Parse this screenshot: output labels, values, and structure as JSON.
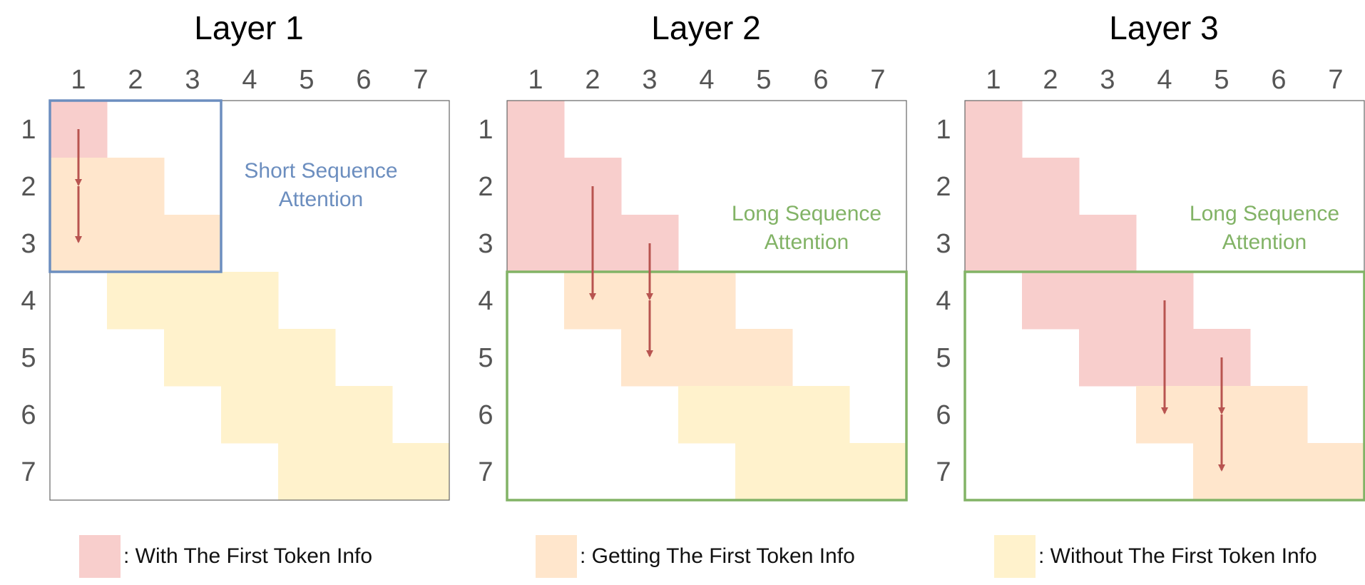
{
  "colors": {
    "with": "#f8cecc",
    "getting": "#ffe6cc",
    "without": "#fff2cc",
    "arrow": "#b85450",
    "short_box": "#6c8ebf",
    "long_box": "#82b366",
    "grid_border": "#666666",
    "label": "#555555"
  },
  "tokens": [
    "1",
    "2",
    "3",
    "4",
    "5",
    "6",
    "7"
  ],
  "panels": [
    {
      "title": "Layer 1",
      "cells": [
        {
          "row": 1,
          "col": 1,
          "state": "with"
        },
        {
          "row": 2,
          "col": 1,
          "state": "getting"
        },
        {
          "row": 2,
          "col": 2,
          "state": "getting"
        },
        {
          "row": 3,
          "col": 1,
          "state": "getting"
        },
        {
          "row": 3,
          "col": 2,
          "state": "getting"
        },
        {
          "row": 3,
          "col": 3,
          "state": "getting"
        },
        {
          "row": 4,
          "col": 2,
          "state": "without"
        },
        {
          "row": 4,
          "col": 3,
          "state": "without"
        },
        {
          "row": 4,
          "col": 4,
          "state": "without"
        },
        {
          "row": 5,
          "col": 3,
          "state": "without"
        },
        {
          "row": 5,
          "col": 4,
          "state": "without"
        },
        {
          "row": 5,
          "col": 5,
          "state": "without"
        },
        {
          "row": 6,
          "col": 4,
          "state": "without"
        },
        {
          "row": 6,
          "col": 5,
          "state": "without"
        },
        {
          "row": 6,
          "col": 6,
          "state": "without"
        },
        {
          "row": 7,
          "col": 5,
          "state": "without"
        },
        {
          "row": 7,
          "col": 6,
          "state": "without"
        },
        {
          "row": 7,
          "col": 7,
          "state": "without"
        }
      ],
      "arrows": [
        {
          "col": 1,
          "from_row": 1,
          "to_row": 2
        },
        {
          "col": 1,
          "from_row": 2,
          "to_row": 3
        }
      ],
      "box": {
        "kind": "short",
        "row_start": 1,
        "row_end": 3,
        "col_start": 1,
        "col_end": 3
      },
      "annotation": {
        "lines": [
          "Short Sequence",
          "Attention"
        ],
        "kind": "short"
      }
    },
    {
      "title": "Layer 2",
      "cells": [
        {
          "row": 1,
          "col": 1,
          "state": "with"
        },
        {
          "row": 2,
          "col": 1,
          "state": "with"
        },
        {
          "row": 2,
          "col": 2,
          "state": "with"
        },
        {
          "row": 3,
          "col": 1,
          "state": "with"
        },
        {
          "row": 3,
          "col": 2,
          "state": "with"
        },
        {
          "row": 3,
          "col": 3,
          "state": "with"
        },
        {
          "row": 4,
          "col": 2,
          "state": "getting"
        },
        {
          "row": 4,
          "col": 3,
          "state": "getting"
        },
        {
          "row": 4,
          "col": 4,
          "state": "getting"
        },
        {
          "row": 5,
          "col": 3,
          "state": "getting"
        },
        {
          "row": 5,
          "col": 4,
          "state": "getting"
        },
        {
          "row": 5,
          "col": 5,
          "state": "getting"
        },
        {
          "row": 6,
          "col": 4,
          "state": "without"
        },
        {
          "row": 6,
          "col": 5,
          "state": "without"
        },
        {
          "row": 6,
          "col": 6,
          "state": "without"
        },
        {
          "row": 7,
          "col": 5,
          "state": "without"
        },
        {
          "row": 7,
          "col": 6,
          "state": "without"
        },
        {
          "row": 7,
          "col": 7,
          "state": "without"
        }
      ],
      "arrows": [
        {
          "col": 2,
          "from_row": 2,
          "to_row": 4
        },
        {
          "col": 3,
          "from_row": 3,
          "to_row": 4
        },
        {
          "col": 3,
          "from_row": 4,
          "to_row": 5
        }
      ],
      "box": {
        "kind": "long",
        "row_start": 4,
        "row_end": 7,
        "col_start": 1,
        "col_end": 7
      },
      "annotation": {
        "lines": [
          "Long Sequence",
          "Attention"
        ],
        "kind": "long"
      }
    },
    {
      "title": "Layer 3",
      "cells": [
        {
          "row": 1,
          "col": 1,
          "state": "with"
        },
        {
          "row": 2,
          "col": 1,
          "state": "with"
        },
        {
          "row": 2,
          "col": 2,
          "state": "with"
        },
        {
          "row": 3,
          "col": 1,
          "state": "with"
        },
        {
          "row": 3,
          "col": 2,
          "state": "with"
        },
        {
          "row": 3,
          "col": 3,
          "state": "with"
        },
        {
          "row": 4,
          "col": 2,
          "state": "with"
        },
        {
          "row": 4,
          "col": 3,
          "state": "with"
        },
        {
          "row": 4,
          "col": 4,
          "state": "with"
        },
        {
          "row": 5,
          "col": 3,
          "state": "with"
        },
        {
          "row": 5,
          "col": 4,
          "state": "with"
        },
        {
          "row": 5,
          "col": 5,
          "state": "with"
        },
        {
          "row": 6,
          "col": 4,
          "state": "getting"
        },
        {
          "row": 6,
          "col": 5,
          "state": "getting"
        },
        {
          "row": 6,
          "col": 6,
          "state": "getting"
        },
        {
          "row": 7,
          "col": 5,
          "state": "getting"
        },
        {
          "row": 7,
          "col": 6,
          "state": "getting"
        },
        {
          "row": 7,
          "col": 7,
          "state": "getting"
        }
      ],
      "arrows": [
        {
          "col": 4,
          "from_row": 4,
          "to_row": 6
        },
        {
          "col": 5,
          "from_row": 5,
          "to_row": 6
        },
        {
          "col": 5,
          "from_row": 6,
          "to_row": 7
        }
      ],
      "box": {
        "kind": "long",
        "row_start": 4,
        "row_end": 7,
        "col_start": 1,
        "col_end": 7
      },
      "annotation": {
        "lines": [
          "Long Sequence",
          "Attention"
        ],
        "kind": "long"
      }
    }
  ],
  "legend": [
    {
      "state": "with",
      "label": ": With The First Token Info"
    },
    {
      "state": "getting",
      "label": ": Getting The First Token Info"
    },
    {
      "state": "without",
      "label": ": Without The First Token Info"
    }
  ]
}
